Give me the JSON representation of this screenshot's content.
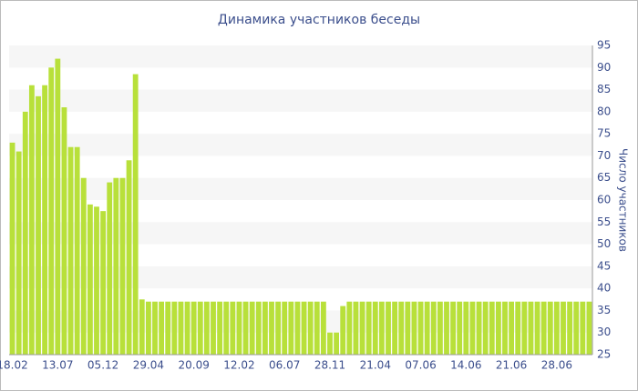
{
  "chart_data": {
    "type": "bar",
    "title": "Динамика участников беседы",
    "y_label": "Число участников",
    "categories": [
      "18.02",
      null,
      null,
      null,
      null,
      null,
      null,
      "13.07",
      null,
      null,
      null,
      null,
      null,
      null,
      "05.12",
      null,
      null,
      null,
      null,
      null,
      null,
      "29.04",
      null,
      null,
      null,
      null,
      null,
      null,
      "20.09",
      null,
      null,
      null,
      null,
      null,
      null,
      "12.02",
      null,
      null,
      null,
      null,
      null,
      null,
      "06.07",
      null,
      null,
      null,
      null,
      null,
      null,
      "28.11",
      null,
      null,
      null,
      null,
      null,
      null,
      "21.04",
      null,
      null,
      null,
      null,
      null,
      null,
      "07.06",
      null,
      null,
      null,
      null,
      null,
      null,
      "14.06",
      null,
      null,
      null,
      null,
      null,
      null,
      "21.06",
      null,
      null,
      null,
      null,
      null,
      null,
      "28.06",
      null,
      null,
      null,
      null,
      null
    ],
    "values": [
      73,
      71,
      80,
      86,
      83.5,
      86,
      90,
      92,
      81,
      72,
      72,
      65,
      59,
      58.5,
      57.5,
      64,
      65,
      65,
      69,
      88.5,
      37.5,
      37,
      37,
      37,
      37,
      37,
      37,
      37,
      37,
      37,
      37,
      37,
      37,
      37,
      37,
      37,
      37,
      37,
      37,
      37,
      37,
      37,
      37,
      37,
      37,
      37,
      37,
      37,
      37,
      30,
      30,
      36,
      37,
      37,
      37,
      37,
      37,
      37,
      37,
      37,
      37,
      37,
      37,
      37,
      37,
      37,
      37,
      37,
      37,
      37,
      37,
      37,
      37,
      37,
      37,
      37,
      37,
      37,
      37,
      37,
      37,
      37,
      37,
      37,
      37,
      37,
      37,
      37,
      37,
      37
    ],
    "color": "#b8e03a",
    "ylim": [
      25,
      95
    ],
    "yticks": [
      25,
      30,
      35,
      40,
      45,
      50,
      55,
      60,
      65,
      70,
      75,
      80,
      85,
      90,
      95
    ],
    "grid": "bands",
    "y_axis_side": "right"
  }
}
